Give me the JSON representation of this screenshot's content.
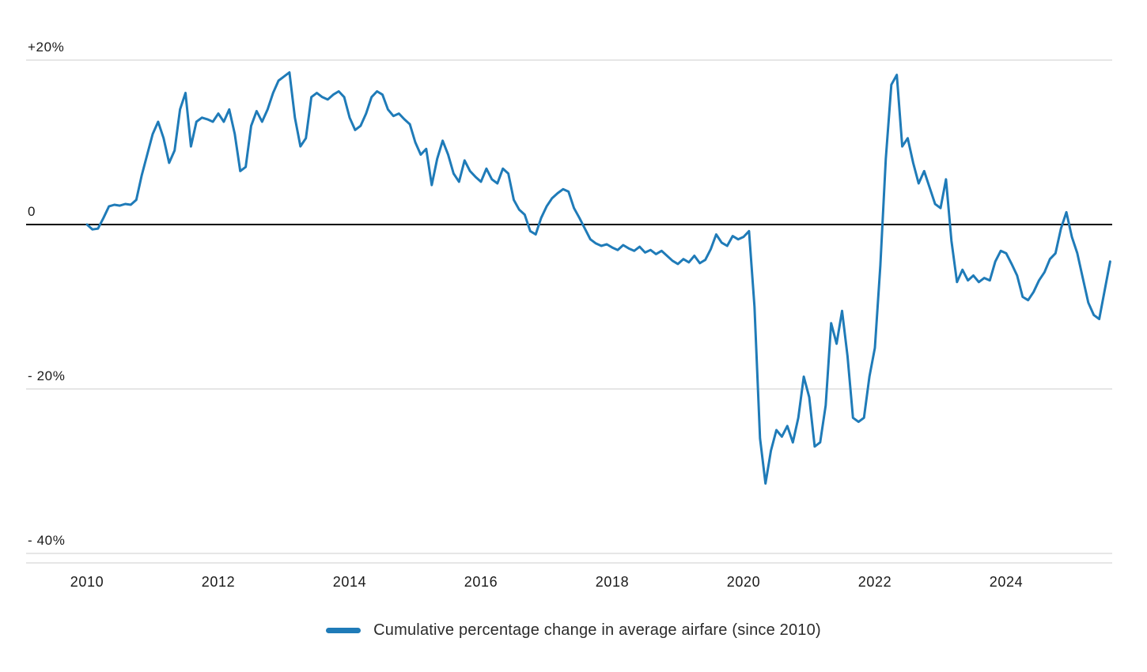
{
  "legend": {
    "label": "Cumulative percentage change in average airfare (since 2010)"
  },
  "chart_data": {
    "type": "line",
    "series_name": "Cumulative percentage change in average airfare (since 2010)",
    "unit": "%",
    "frequency": "monthly",
    "start": "2010-01",
    "end": "2025-08",
    "line_color": "#1f7bb8",
    "grid_color": "#cccccc",
    "zero_line_color": "#000000",
    "ylim": [
      -40,
      20
    ],
    "grid": true,
    "legend_position": "bottom",
    "y_ticks": [
      {
        "value": 20,
        "label": "+20%"
      },
      {
        "value": 0,
        "label": "0"
      },
      {
        "value": -20,
        "label": "- 20%"
      },
      {
        "value": -40,
        "label": "- 40%"
      }
    ],
    "x_ticks": [
      {
        "year": 2010,
        "label": "2010"
      },
      {
        "year": 2012,
        "label": "2012"
      },
      {
        "year": 2014,
        "label": "2014"
      },
      {
        "year": 2016,
        "label": "2016"
      },
      {
        "year": 2018,
        "label": "2018"
      },
      {
        "year": 2020,
        "label": "2020"
      },
      {
        "year": 2022,
        "label": "2022"
      },
      {
        "year": 2024,
        "label": "2024"
      }
    ],
    "values": [
      0.0,
      -0.6,
      -0.5,
      0.8,
      2.2,
      2.4,
      2.3,
      2.5,
      2.4,
      3.0,
      6.0,
      8.5,
      11.0,
      12.5,
      10.5,
      7.5,
      9.0,
      14.0,
      16.0,
      9.5,
      12.5,
      13.0,
      12.8,
      12.5,
      13.5,
      12.5,
      14.0,
      11.0,
      6.5,
      7.0,
      12.0,
      13.8,
      12.5,
      14.0,
      16.0,
      17.5,
      18.0,
      18.5,
      13.0,
      9.5,
      10.5,
      15.5,
      16.0,
      15.5,
      15.2,
      15.8,
      16.2,
      15.5,
      13.0,
      11.5,
      12.0,
      13.5,
      15.5,
      16.2,
      15.8,
      14.0,
      13.2,
      13.5,
      12.8,
      12.2,
      10.0,
      8.5,
      9.2,
      4.8,
      8.0,
      10.2,
      8.5,
      6.2,
      5.2,
      7.8,
      6.5,
      5.8,
      5.2,
      6.8,
      5.5,
      5.0,
      6.8,
      6.2,
      3.0,
      1.8,
      1.2,
      -0.8,
      -1.2,
      0.8,
      2.2,
      3.2,
      3.8,
      4.3,
      4.0,
      2.0,
      0.8,
      -0.5,
      -1.8,
      -2.3,
      -2.6,
      -2.4,
      -2.8,
      -3.1,
      -2.5,
      -2.9,
      -3.2,
      -2.7,
      -3.4,
      -3.1,
      -3.6,
      -3.2,
      -3.8,
      -4.4,
      -4.8,
      -4.2,
      -4.6,
      -3.8,
      -4.7,
      -4.3,
      -3.0,
      -1.2,
      -2.2,
      -2.6,
      -1.4,
      -1.8,
      -1.5,
      -0.8,
      -10.0,
      -26.0,
      -31.5,
      -27.5,
      -25.0,
      -25.8,
      -24.5,
      -26.5,
      -23.5,
      -18.5,
      -21.0,
      -27.0,
      -26.5,
      -22.0,
      -12.0,
      -14.5,
      -10.5,
      -16.0,
      -23.5,
      -24.0,
      -23.5,
      -18.5,
      -15.0,
      -5.0,
      8.0,
      17.0,
      18.2,
      9.5,
      10.5,
      7.5,
      5.0,
      6.5,
      4.5,
      2.5,
      2.0,
      5.5,
      -2.0,
      -7.0,
      -5.5,
      -6.8,
      -6.2,
      -7.0,
      -6.5,
      -6.8,
      -4.5,
      -3.2,
      -3.5,
      -4.8,
      -6.2,
      -8.8,
      -9.2,
      -8.2,
      -6.8,
      -5.8,
      -4.2,
      -3.5,
      -0.5,
      1.5,
      -1.5,
      -3.5,
      -6.5,
      -9.5,
      -11.0,
      -11.5,
      -8.0,
      -4.5
    ]
  }
}
